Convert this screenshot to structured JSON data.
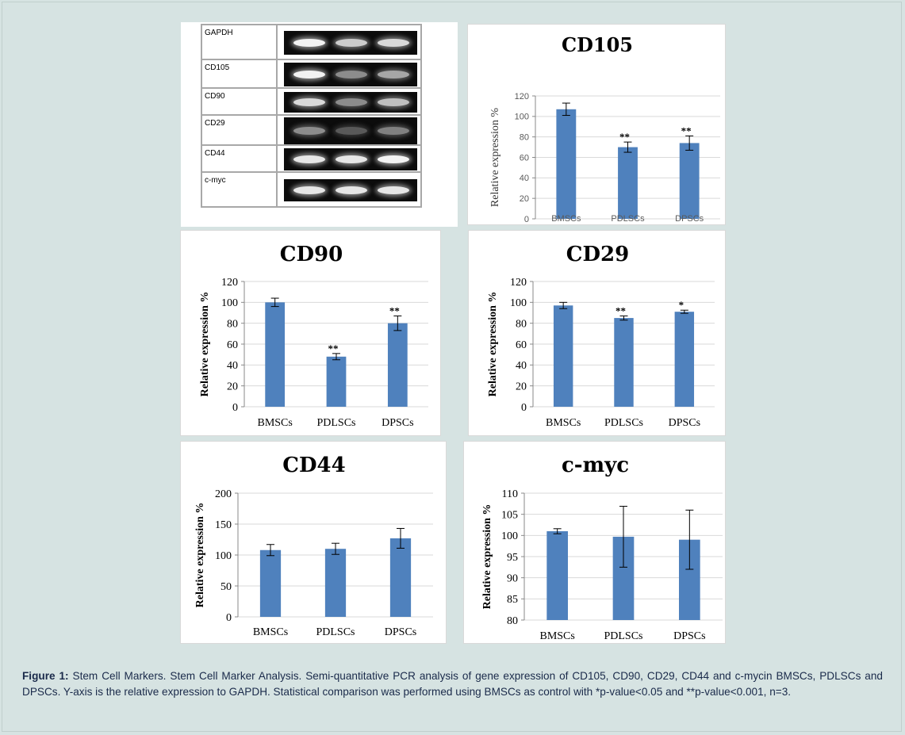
{
  "gel": {
    "rows": [
      {
        "label": "GAPDH",
        "bands": [
          0.95,
          0.8,
          0.85
        ],
        "height": 44
      },
      {
        "label": "CD105",
        "bands": [
          0.95,
          0.55,
          0.65
        ],
        "height": 36
      },
      {
        "label": "CD90",
        "bands": [
          0.85,
          0.55,
          0.75
        ],
        "height": 34
      },
      {
        "label": "CD29",
        "bands": [
          0.55,
          0.35,
          0.5
        ],
        "height": 38
      },
      {
        "label": "CD44",
        "bands": [
          0.9,
          0.9,
          0.95
        ],
        "height": 34
      },
      {
        "label": "c-myc",
        "bands": [
          0.9,
          0.9,
          0.9
        ],
        "height": 44
      }
    ]
  },
  "bar_color": "#4f81bd",
  "chart_data": [
    {
      "type": "bar",
      "title": "CD105",
      "xlabel": "",
      "ylabel": "Relative expression %",
      "categories": [
        "BMSCs",
        "PDLSCs",
        "DPSCs"
      ],
      "values": [
        107,
        70,
        74
      ],
      "errors": [
        6,
        5,
        7
      ],
      "significance": [
        "",
        "**",
        "**"
      ],
      "ylim": [
        0,
        120
      ],
      "yticks": [
        0,
        20,
        40,
        60,
        80,
        100,
        120
      ],
      "grid": true
    },
    {
      "type": "bar",
      "title": "CD90",
      "xlabel": "",
      "ylabel": "Relative expression %",
      "categories": [
        "BMSCs",
        "PDLSCs",
        "DPSCs"
      ],
      "values": [
        100,
        48,
        80
      ],
      "errors": [
        4,
        3,
        7
      ],
      "significance": [
        "",
        "**",
        "**"
      ],
      "ylim": [
        0,
        120
      ],
      "yticks": [
        0,
        20,
        40,
        60,
        80,
        100,
        120
      ],
      "grid": true
    },
    {
      "type": "bar",
      "title": "CD29",
      "xlabel": "",
      "ylabel": "Relative expression %",
      "categories": [
        "BMSCs",
        "PDLSCs",
        "DPSCs"
      ],
      "values": [
        97,
        85,
        91
      ],
      "errors": [
        3,
        2,
        1.5
      ],
      "significance": [
        "",
        "**",
        "*"
      ],
      "ylim": [
        0,
        120
      ],
      "yticks": [
        0,
        20,
        40,
        60,
        80,
        100,
        120
      ],
      "grid": true
    },
    {
      "type": "bar",
      "title": "CD44",
      "xlabel": "",
      "ylabel": "Relative expression %",
      "categories": [
        "BMSCs",
        "PDLSCs",
        "DPSCs"
      ],
      "values": [
        108,
        110,
        127
      ],
      "errors": [
        9,
        9,
        16
      ],
      "significance": [
        "",
        "",
        ""
      ],
      "ylim": [
        0,
        200
      ],
      "yticks": [
        0,
        50,
        100,
        150,
        200
      ],
      "grid": true
    },
    {
      "type": "bar",
      "title": "c-myc",
      "xlabel": "",
      "ylabel": "Relative expression %",
      "categories": [
        "BMSCs",
        "PDLSCs",
        "DPSCs"
      ],
      "values": [
        101,
        99.7,
        99
      ],
      "errors": [
        0.6,
        7.2,
        7
      ],
      "significance": [
        "",
        "",
        ""
      ],
      "ylim": [
        80,
        110
      ],
      "yticks": [
        80,
        85,
        90,
        95,
        100,
        105,
        110
      ],
      "grid": true
    }
  ],
  "caption": {
    "label": "Figure 1:",
    "text": " Stem Cell Markers. Stem Cell Marker Analysis. Semi-quantitative PCR analysis of gene expression of CD105, CD90, CD29, CD44 and c-mycin BMSCs, PDLSCs and DPSCs. Y-axis is the relative expression to GAPDH. Statistical comparison was performed using BMSCs as control with *p-value<0.05 and **p-value<0.001, n=3."
  }
}
